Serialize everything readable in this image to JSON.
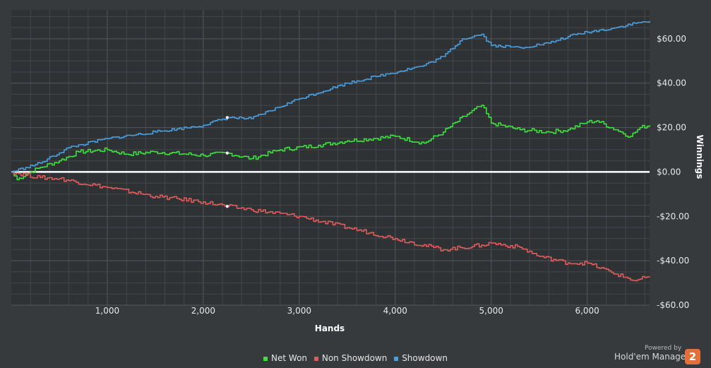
{
  "chart_data": {
    "type": "line",
    "x_label": "Hands",
    "y_label": "Winnings",
    "x_ticks": [
      "1,000",
      "2,000",
      "3,000",
      "4,000",
      "5,000",
      "6,000"
    ],
    "y_ticks": [
      "$60.00",
      "$40.00",
      "$20.00",
      "$0.00",
      "-$20.00",
      "-$40.00",
      "-$60.00"
    ],
    "xlim": [
      0,
      6650
    ],
    "ylim": [
      -60,
      73
    ],
    "grid": true,
    "legend_position": "bottom",
    "series": [
      {
        "name": "Net Won",
        "color": "#3ee03e",
        "points": [
          [
            0,
            0
          ],
          [
            60,
            -3.5
          ],
          [
            150,
            -1
          ],
          [
            300,
            2
          ],
          [
            500,
            5
          ],
          [
            700,
            9
          ],
          [
            1000,
            10
          ],
          [
            1200,
            8
          ],
          [
            1500,
            9
          ],
          [
            2000,
            7.5
          ],
          [
            2250,
            8.5
          ],
          [
            2500,
            6
          ],
          [
            2800,
            10
          ],
          [
            3200,
            12
          ],
          [
            3500,
            14
          ],
          [
            4000,
            16
          ],
          [
            4300,
            13
          ],
          [
            4500,
            18
          ],
          [
            4750,
            26
          ],
          [
            4900,
            30
          ],
          [
            5000,
            22
          ],
          [
            5300,
            19
          ],
          [
            5600,
            18
          ],
          [
            5800,
            19
          ],
          [
            6000,
            22.5
          ],
          [
            6100,
            23
          ],
          [
            6300,
            19
          ],
          [
            6450,
            16
          ],
          [
            6550,
            20
          ],
          [
            6650,
            21
          ]
        ]
      },
      {
        "name": "Non Showdown",
        "color": "#e05c5a",
        "points": [
          [
            0,
            0
          ],
          [
            300,
            -2.5
          ],
          [
            500,
            -3
          ],
          [
            1000,
            -7
          ],
          [
            1500,
            -11
          ],
          [
            2000,
            -13.5
          ],
          [
            2250,
            -15.5
          ],
          [
            2500,
            -17
          ],
          [
            3000,
            -20
          ],
          [
            3500,
            -25
          ],
          [
            4000,
            -30
          ],
          [
            4500,
            -35
          ],
          [
            4900,
            -33
          ],
          [
            5000,
            -32
          ],
          [
            5300,
            -34
          ],
          [
            5500,
            -38
          ],
          [
            5800,
            -41
          ],
          [
            6000,
            -41
          ],
          [
            6300,
            -46
          ],
          [
            6500,
            -49
          ],
          [
            6650,
            -47
          ]
        ]
      },
      {
        "name": "Showdown",
        "color": "#4a9ede",
        "points": [
          [
            0,
            0
          ],
          [
            150,
            2
          ],
          [
            300,
            4
          ],
          [
            600,
            11
          ],
          [
            1000,
            15
          ],
          [
            1500,
            18
          ],
          [
            2000,
            21
          ],
          [
            2250,
            24.5
          ],
          [
            2500,
            24
          ],
          [
            3000,
            33
          ],
          [
            3500,
            40
          ],
          [
            3800,
            43
          ],
          [
            4300,
            48
          ],
          [
            4500,
            52
          ],
          [
            4700,
            60
          ],
          [
            4900,
            62
          ],
          [
            5000,
            57
          ],
          [
            5300,
            56
          ],
          [
            5600,
            58
          ],
          [
            5800,
            61
          ],
          [
            6000,
            63
          ],
          [
            6300,
            65
          ],
          [
            6500,
            67
          ],
          [
            6650,
            68
          ]
        ]
      }
    ],
    "markers": [
      {
        "series": "Showdown",
        "x": 2250,
        "y": 24.5
      },
      {
        "series": "Net Won",
        "x": 2250,
        "y": 8.5
      },
      {
        "series": "Non Showdown",
        "x": 2250,
        "y": -15.5
      }
    ]
  },
  "brand": {
    "powered_by": "Powered by",
    "name": "Hold'em Manager",
    "badge": "2"
  }
}
